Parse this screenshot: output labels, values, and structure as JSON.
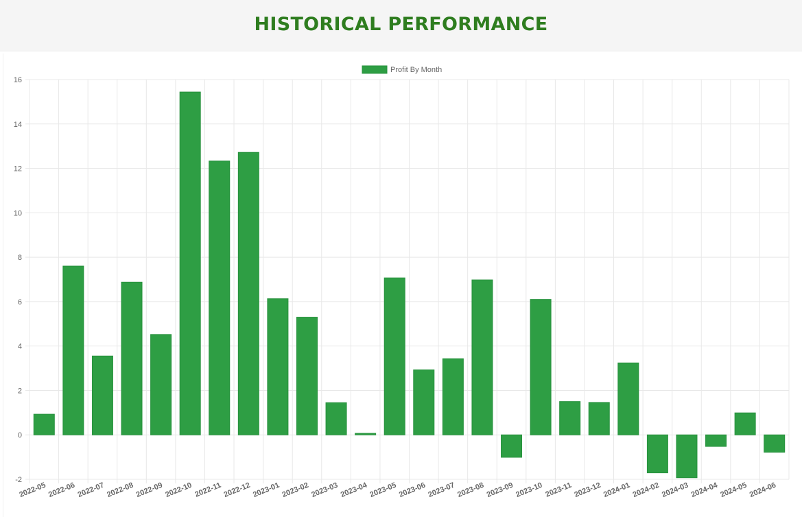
{
  "header": {
    "title": "HISTORICAL PERFORMANCE"
  },
  "colors": {
    "bar": "#2e9e44",
    "bar_border": "#27913d",
    "title": "#2e7d1f",
    "grid": "#e8e8e8",
    "header_bg": "#f5f5f5"
  },
  "chart_data": {
    "type": "bar",
    "categories": [
      "2022-05",
      "2022-06",
      "2022-07",
      "2022-08",
      "2022-09",
      "2022-10",
      "2022-11",
      "2022-12",
      "2023-01",
      "2023-02",
      "2023-03",
      "2023-04",
      "2023-05",
      "2023-06",
      "2023-07",
      "2023-08",
      "2023-09",
      "2023-10",
      "2023-11",
      "2023-12",
      "2024-01",
      "2024-02",
      "2024-03",
      "2024-04",
      "2024-05",
      "2024-06"
    ],
    "series": [
      {
        "name": "Profit By Month",
        "values": [
          0.93,
          7.6,
          3.55,
          6.88,
          4.52,
          15.44,
          12.33,
          12.72,
          6.13,
          5.3,
          1.45,
          0.07,
          7.07,
          2.93,
          3.43,
          6.98,
          -1.01,
          6.1,
          1.5,
          1.46,
          3.24,
          -1.71,
          -1.93,
          -0.52,
          0.99,
          -0.78
        ]
      }
    ],
    "yticks": [
      -2,
      0,
      2,
      4,
      6,
      8,
      10,
      12,
      14,
      16
    ],
    "ylim": [
      -2,
      16
    ],
    "grid": true,
    "legend_position": "top"
  }
}
